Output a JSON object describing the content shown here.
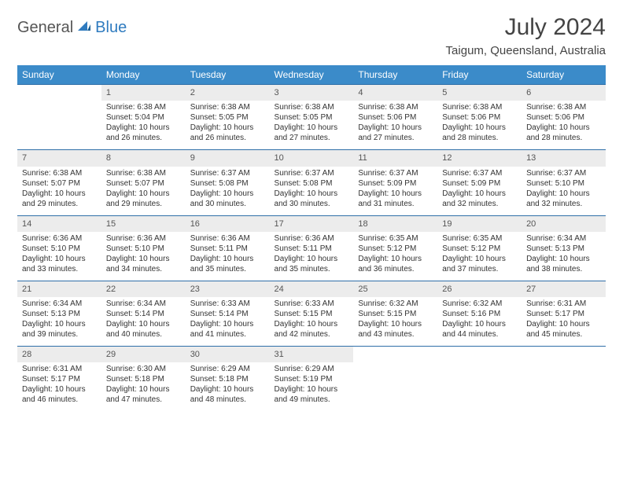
{
  "logo": {
    "part1": "General",
    "part2": "Blue"
  },
  "title": "July 2024",
  "location": "Taigum, Queensland, Australia",
  "colors": {
    "header_bg": "#3b8bc9",
    "header_text": "#ffffff",
    "daynum_bg": "#ececec",
    "row_border": "#2f6fa8",
    "body_text": "#333333",
    "logo_accent": "#2f7bbf"
  },
  "day_headers": [
    "Sunday",
    "Monday",
    "Tuesday",
    "Wednesday",
    "Thursday",
    "Friday",
    "Saturday"
  ],
  "weeks": [
    [
      {
        "num": "",
        "lines": [
          "",
          "",
          "",
          ""
        ]
      },
      {
        "num": "1",
        "lines": [
          "Sunrise: 6:38 AM",
          "Sunset: 5:04 PM",
          "Daylight: 10 hours",
          "and 26 minutes."
        ]
      },
      {
        "num": "2",
        "lines": [
          "Sunrise: 6:38 AM",
          "Sunset: 5:05 PM",
          "Daylight: 10 hours",
          "and 26 minutes."
        ]
      },
      {
        "num": "3",
        "lines": [
          "Sunrise: 6:38 AM",
          "Sunset: 5:05 PM",
          "Daylight: 10 hours",
          "and 27 minutes."
        ]
      },
      {
        "num": "4",
        "lines": [
          "Sunrise: 6:38 AM",
          "Sunset: 5:06 PM",
          "Daylight: 10 hours",
          "and 27 minutes."
        ]
      },
      {
        "num": "5",
        "lines": [
          "Sunrise: 6:38 AM",
          "Sunset: 5:06 PM",
          "Daylight: 10 hours",
          "and 28 minutes."
        ]
      },
      {
        "num": "6",
        "lines": [
          "Sunrise: 6:38 AM",
          "Sunset: 5:06 PM",
          "Daylight: 10 hours",
          "and 28 minutes."
        ]
      }
    ],
    [
      {
        "num": "7",
        "lines": [
          "Sunrise: 6:38 AM",
          "Sunset: 5:07 PM",
          "Daylight: 10 hours",
          "and 29 minutes."
        ]
      },
      {
        "num": "8",
        "lines": [
          "Sunrise: 6:38 AM",
          "Sunset: 5:07 PM",
          "Daylight: 10 hours",
          "and 29 minutes."
        ]
      },
      {
        "num": "9",
        "lines": [
          "Sunrise: 6:37 AM",
          "Sunset: 5:08 PM",
          "Daylight: 10 hours",
          "and 30 minutes."
        ]
      },
      {
        "num": "10",
        "lines": [
          "Sunrise: 6:37 AM",
          "Sunset: 5:08 PM",
          "Daylight: 10 hours",
          "and 30 minutes."
        ]
      },
      {
        "num": "11",
        "lines": [
          "Sunrise: 6:37 AM",
          "Sunset: 5:09 PM",
          "Daylight: 10 hours",
          "and 31 minutes."
        ]
      },
      {
        "num": "12",
        "lines": [
          "Sunrise: 6:37 AM",
          "Sunset: 5:09 PM",
          "Daylight: 10 hours",
          "and 32 minutes."
        ]
      },
      {
        "num": "13",
        "lines": [
          "Sunrise: 6:37 AM",
          "Sunset: 5:10 PM",
          "Daylight: 10 hours",
          "and 32 minutes."
        ]
      }
    ],
    [
      {
        "num": "14",
        "lines": [
          "Sunrise: 6:36 AM",
          "Sunset: 5:10 PM",
          "Daylight: 10 hours",
          "and 33 minutes."
        ]
      },
      {
        "num": "15",
        "lines": [
          "Sunrise: 6:36 AM",
          "Sunset: 5:10 PM",
          "Daylight: 10 hours",
          "and 34 minutes."
        ]
      },
      {
        "num": "16",
        "lines": [
          "Sunrise: 6:36 AM",
          "Sunset: 5:11 PM",
          "Daylight: 10 hours",
          "and 35 minutes."
        ]
      },
      {
        "num": "17",
        "lines": [
          "Sunrise: 6:36 AM",
          "Sunset: 5:11 PM",
          "Daylight: 10 hours",
          "and 35 minutes."
        ]
      },
      {
        "num": "18",
        "lines": [
          "Sunrise: 6:35 AM",
          "Sunset: 5:12 PM",
          "Daylight: 10 hours",
          "and 36 minutes."
        ]
      },
      {
        "num": "19",
        "lines": [
          "Sunrise: 6:35 AM",
          "Sunset: 5:12 PM",
          "Daylight: 10 hours",
          "and 37 minutes."
        ]
      },
      {
        "num": "20",
        "lines": [
          "Sunrise: 6:34 AM",
          "Sunset: 5:13 PM",
          "Daylight: 10 hours",
          "and 38 minutes."
        ]
      }
    ],
    [
      {
        "num": "21",
        "lines": [
          "Sunrise: 6:34 AM",
          "Sunset: 5:13 PM",
          "Daylight: 10 hours",
          "and 39 minutes."
        ]
      },
      {
        "num": "22",
        "lines": [
          "Sunrise: 6:34 AM",
          "Sunset: 5:14 PM",
          "Daylight: 10 hours",
          "and 40 minutes."
        ]
      },
      {
        "num": "23",
        "lines": [
          "Sunrise: 6:33 AM",
          "Sunset: 5:14 PM",
          "Daylight: 10 hours",
          "and 41 minutes."
        ]
      },
      {
        "num": "24",
        "lines": [
          "Sunrise: 6:33 AM",
          "Sunset: 5:15 PM",
          "Daylight: 10 hours",
          "and 42 minutes."
        ]
      },
      {
        "num": "25",
        "lines": [
          "Sunrise: 6:32 AM",
          "Sunset: 5:15 PM",
          "Daylight: 10 hours",
          "and 43 minutes."
        ]
      },
      {
        "num": "26",
        "lines": [
          "Sunrise: 6:32 AM",
          "Sunset: 5:16 PM",
          "Daylight: 10 hours",
          "and 44 minutes."
        ]
      },
      {
        "num": "27",
        "lines": [
          "Sunrise: 6:31 AM",
          "Sunset: 5:17 PM",
          "Daylight: 10 hours",
          "and 45 minutes."
        ]
      }
    ],
    [
      {
        "num": "28",
        "lines": [
          "Sunrise: 6:31 AM",
          "Sunset: 5:17 PM",
          "Daylight: 10 hours",
          "and 46 minutes."
        ]
      },
      {
        "num": "29",
        "lines": [
          "Sunrise: 6:30 AM",
          "Sunset: 5:18 PM",
          "Daylight: 10 hours",
          "and 47 minutes."
        ]
      },
      {
        "num": "30",
        "lines": [
          "Sunrise: 6:29 AM",
          "Sunset: 5:18 PM",
          "Daylight: 10 hours",
          "and 48 minutes."
        ]
      },
      {
        "num": "31",
        "lines": [
          "Sunrise: 6:29 AM",
          "Sunset: 5:19 PM",
          "Daylight: 10 hours",
          "and 49 minutes."
        ]
      },
      {
        "num": "",
        "lines": [
          "",
          "",
          "",
          ""
        ]
      },
      {
        "num": "",
        "lines": [
          "",
          "",
          "",
          ""
        ]
      },
      {
        "num": "",
        "lines": [
          "",
          "",
          "",
          ""
        ]
      }
    ]
  ]
}
